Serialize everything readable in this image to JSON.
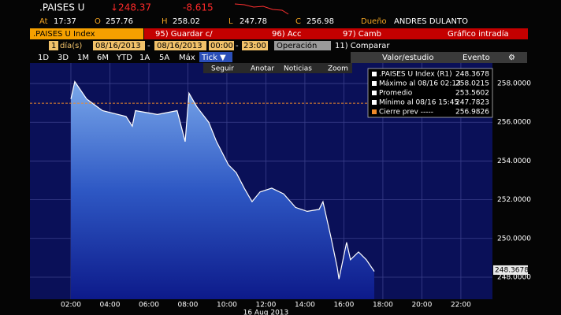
{
  "header": {
    "ticker": ".PAISES U",
    "last": "↓248.37",
    "change": "-8.615",
    "at_label": "At",
    "time": "17:37",
    "ohlc": [
      {
        "label": "O",
        "value": "257.76"
      },
      {
        "label": "H",
        "value": "258.02"
      },
      {
        "label": "L",
        "value": "247.78"
      },
      {
        "label": "C",
        "value": "256.98"
      }
    ],
    "owner_label": "Dueño",
    "owner": "ANDRES DULANTO"
  },
  "menu": {
    "security": ".PAISES U Index",
    "buttons": [
      "95) Guardar c/",
      "96) Acc",
      "97) Camb"
    ],
    "title": "Gráfico intradía"
  },
  "range": {
    "period": "1",
    "unit": "día(s)",
    "start": "08/16/2013",
    "end": "08/16/2013",
    "separator": "-",
    "from": "00:00",
    "to": "23:00",
    "mode": "Operación",
    "compare": "11) Comparar"
  },
  "periods": [
    "1D",
    "3D",
    "1M",
    "6M",
    "YTD",
    "1A",
    "5A",
    "Máx",
    "Tick ▼"
  ],
  "panel": [
    "Valor/estudio",
    "Evento"
  ],
  "tools": [
    "Seguir",
    "Anotar",
    "Noticias",
    "Zoom"
  ],
  "chart_data": {
    "type": "area",
    "x": [
      2.0,
      2.2,
      2.81,
      3.62,
      4.83,
      5.15,
      5.31,
      6.44,
      7.45,
      7.86,
      8.06,
      8.46,
      9.07,
      9.47,
      10.08,
      10.48,
      10.89,
      11.29,
      11.7,
      12.3,
      12.91,
      13.52,
      14.12,
      14.73,
      14.93,
      15.33,
      15.66,
      15.75,
      16.14,
      16.34,
      16.75,
      17.15,
      17.56
    ],
    "series": [
      {
        "color": "#ffffff",
        "values": [
          257.2,
          258.1,
          257.2,
          256.6,
          256.3,
          255.8,
          256.6,
          256.4,
          256.6,
          255.0,
          257.5,
          256.8,
          256.0,
          255.0,
          253.8,
          253.4,
          252.6,
          251.9,
          252.4,
          252.6,
          252.3,
          251.6,
          251.4,
          251.5,
          251.9,
          250.1,
          248.5,
          247.9,
          249.8,
          248.9,
          249.3,
          248.9,
          248.3
        ]
      }
    ],
    "xlim": [
      -0.1,
      23.62
    ],
    "ylim": [
      246.86,
      259.06
    ],
    "xticks": [
      {
        "value": 2,
        "label": "02:00"
      },
      {
        "value": 4,
        "label": "04:00"
      },
      {
        "value": 6,
        "label": "06:00"
      },
      {
        "value": 8,
        "label": "08:00"
      },
      {
        "value": 10,
        "label": "10:00"
      },
      {
        "value": 12,
        "label": "12:00"
      },
      {
        "value": 14,
        "label": "14:00"
      },
      {
        "value": 16,
        "label": "16:00"
      },
      {
        "value": 18,
        "label": "18:00"
      },
      {
        "value": 20,
        "label": "20:00"
      },
      {
        "value": 22,
        "label": "22:00"
      }
    ],
    "yticks": [
      {
        "value": 248,
        "label": "248.0000"
      },
      {
        "value": 250,
        "label": "250.0000"
      },
      {
        "value": 252,
        "label": "252.0000"
      },
      {
        "value": 254,
        "label": "254.0000"
      },
      {
        "value": 256,
        "label": "256.0000"
      },
      {
        "value": 258,
        "label": "258.0000"
      }
    ],
    "xlabel": "16 Aug 2013",
    "grid": true,
    "legend": [
      {
        "label": ".PAISES U Index (R1)",
        "value": 248.3678
      },
      {
        "label": "Máximo al 08/16 02:13",
        "value": 258.0215
      },
      {
        "label": "Promedio",
        "value": 253.5602
      },
      {
        "label": "Mínimo al 08/16 15:45",
        "value": 247.7823
      },
      {
        "label": "Cierre prev -----",
        "value": 256.9826
      }
    ]
  }
}
